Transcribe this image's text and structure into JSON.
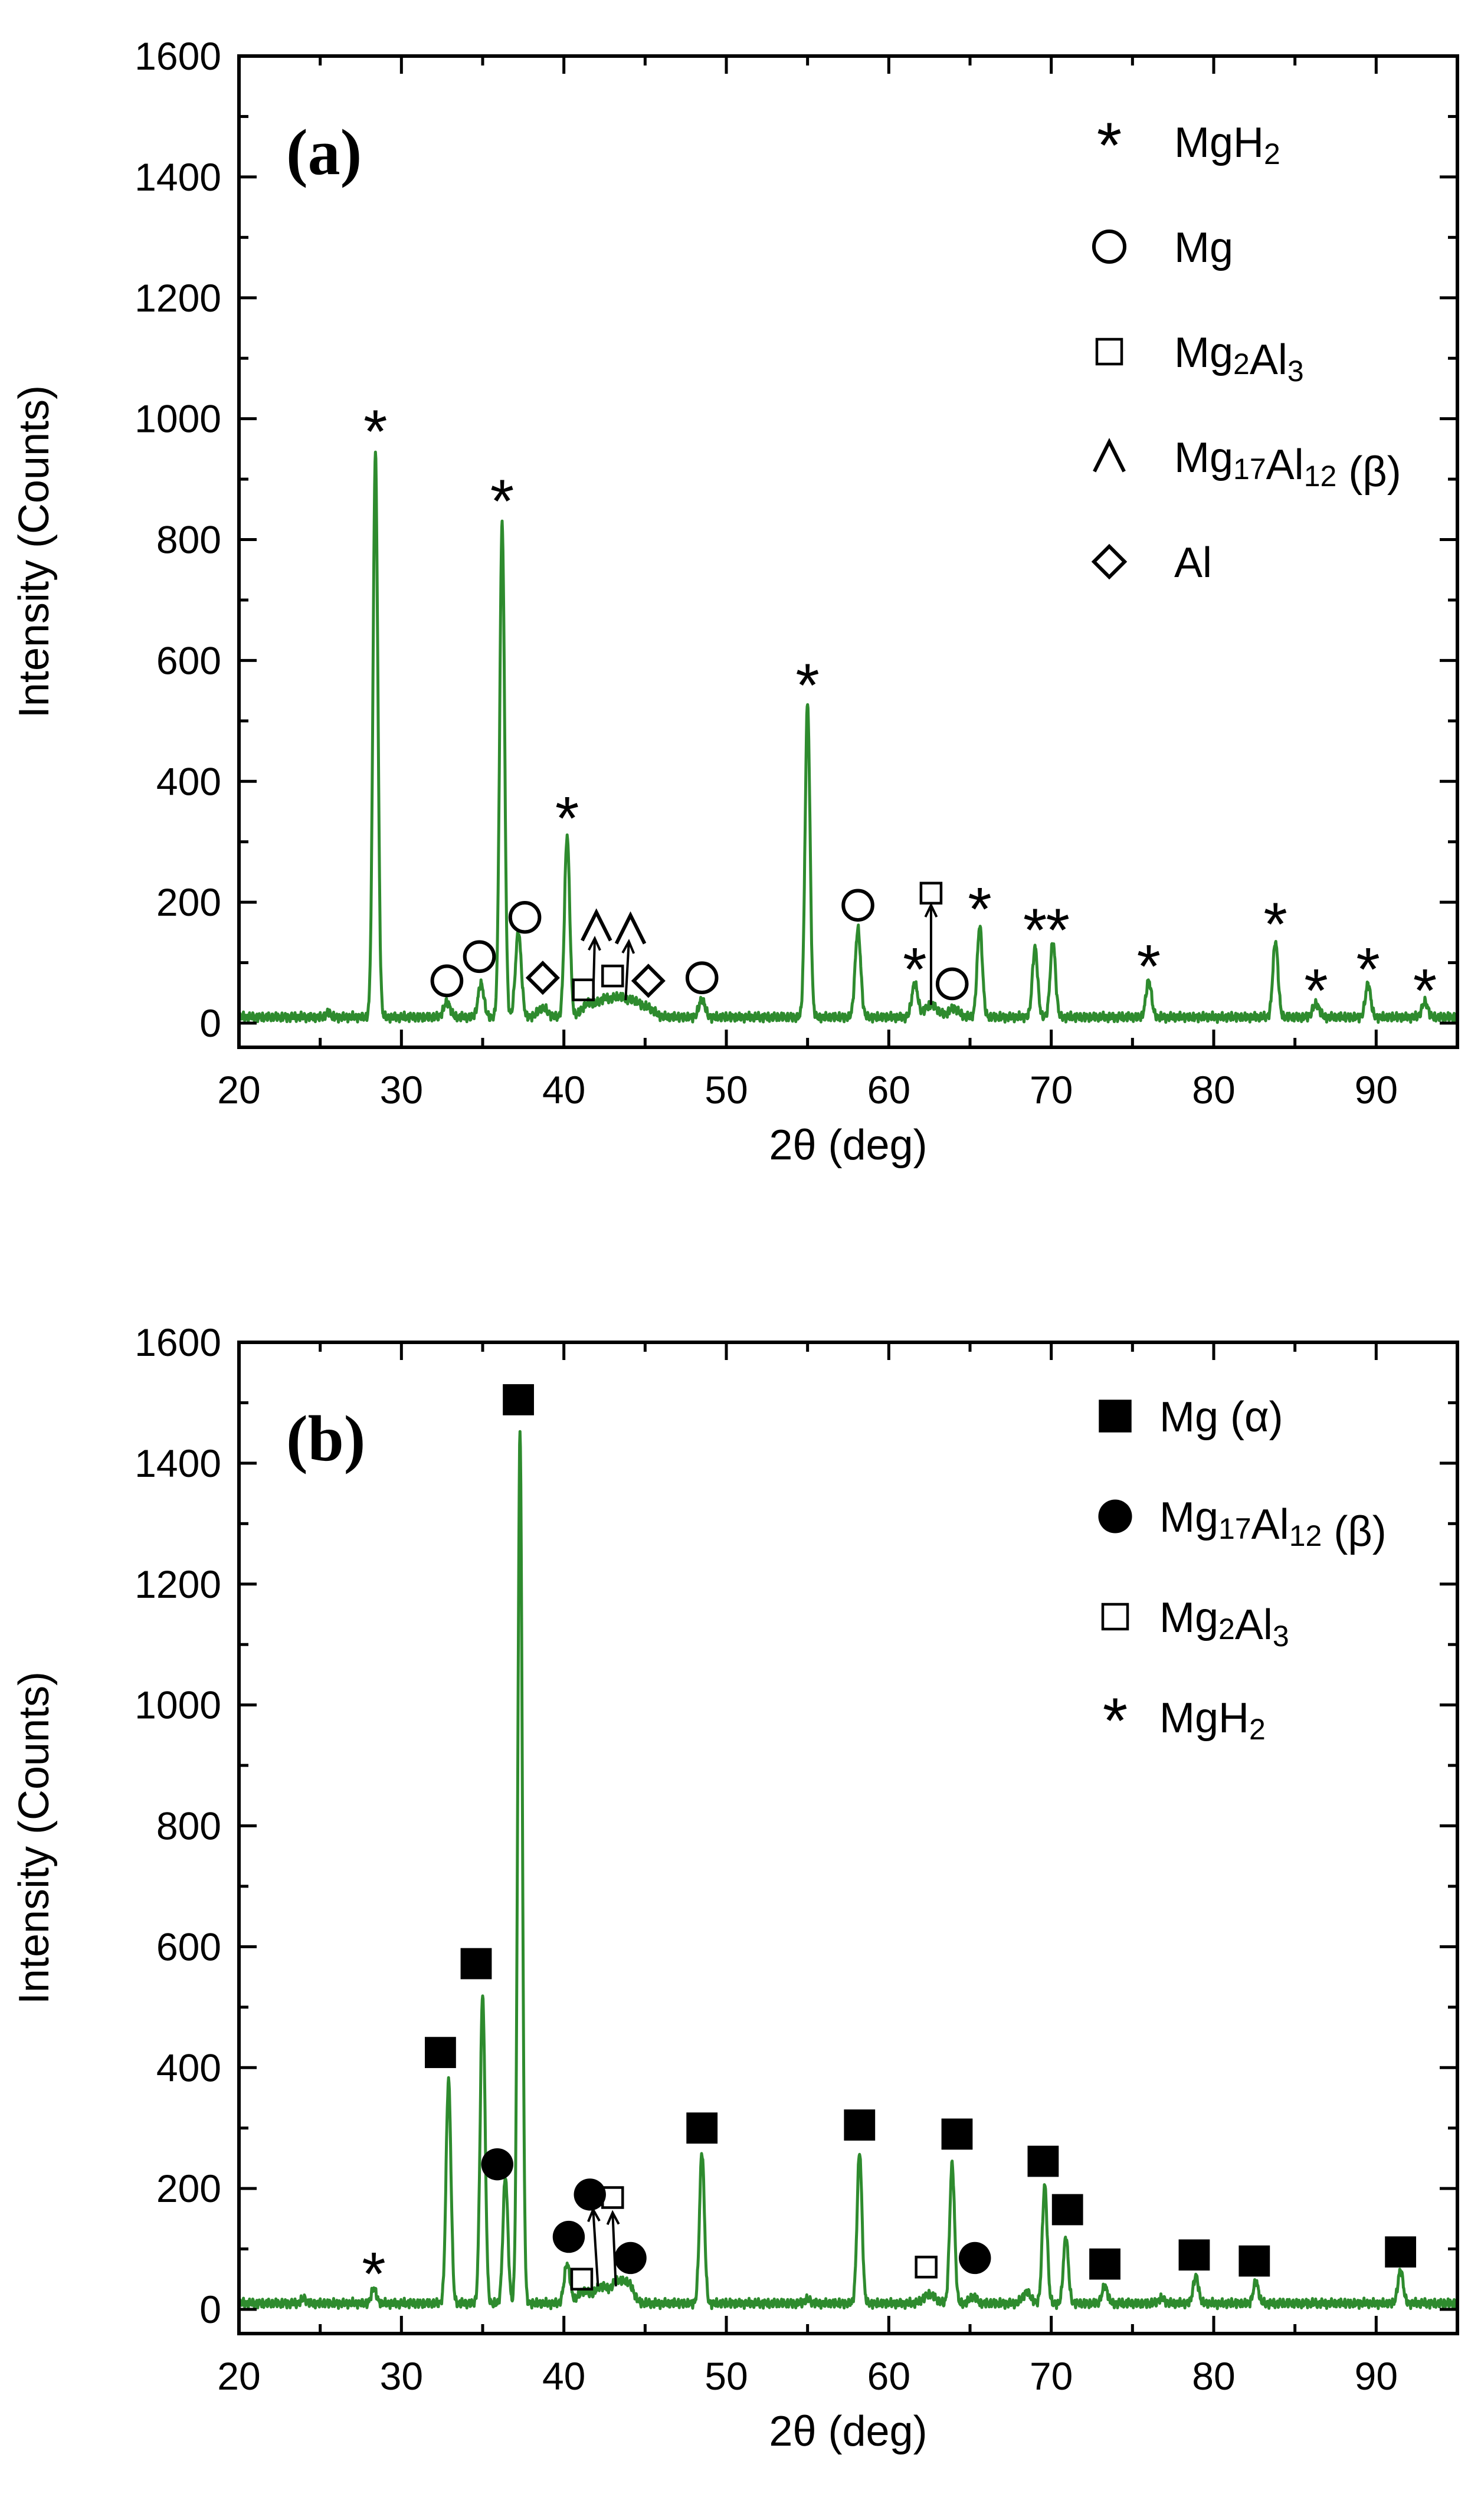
{
  "chart_data": [
    {
      "type": "line",
      "panel_label": "(a)",
      "xlabel": "2θ (deg)",
      "ylabel": "Intensity (Counts)",
      "xlim": [
        20,
        95
      ],
      "ylim": [
        -40,
        1600
      ],
      "xticks": [
        20,
        30,
        40,
        50,
        60,
        70,
        80,
        90
      ],
      "yticks": [
        0,
        200,
        400,
        600,
        800,
        1000,
        1200,
        1400,
        1600
      ],
      "line_color": "#2e8b2e",
      "baseline": 10,
      "peaks": [
        {
          "x": 25.5,
          "y": 8,
          "w": 0.12
        },
        {
          "x": 28.4,
          "y": 930,
          "w": 0.15
        },
        {
          "x": 32.8,
          "y": 25,
          "w": 0.2
        },
        {
          "x": 34.9,
          "y": 55,
          "w": 0.18
        },
        {
          "x": 36.2,
          "y": 820,
          "w": 0.15
        },
        {
          "x": 37.2,
          "y": 140,
          "w": 0.18
        },
        {
          "x": 38.7,
          "y": 15,
          "w": 0.3
        },
        {
          "x": 40.2,
          "y": 300,
          "w": 0.16
        },
        {
          "x": 41.5,
          "y": 22,
          "w": 0.4
        },
        {
          "x": 42.5,
          "y": 28,
          "w": 0.4
        },
        {
          "x": 43.4,
          "y": 30,
          "w": 0.4
        },
        {
          "x": 44.3,
          "y": 25,
          "w": 0.4
        },
        {
          "x": 45.2,
          "y": 14,
          "w": 0.4
        },
        {
          "x": 48.5,
          "y": 30,
          "w": 0.18
        },
        {
          "x": 55.0,
          "y": 520,
          "w": 0.15
        },
        {
          "x": 58.1,
          "y": 145,
          "w": 0.17
        },
        {
          "x": 61.6,
          "y": 55,
          "w": 0.18
        },
        {
          "x": 62.6,
          "y": 20,
          "w": 0.4
        },
        {
          "x": 64.0,
          "y": 15,
          "w": 0.3
        },
        {
          "x": 65.6,
          "y": 150,
          "w": 0.16
        },
        {
          "x": 69.0,
          "y": 115,
          "w": 0.16
        },
        {
          "x": 70.1,
          "y": 125,
          "w": 0.16
        },
        {
          "x": 76.0,
          "y": 60,
          "w": 0.17
        },
        {
          "x": 83.8,
          "y": 125,
          "w": 0.16
        },
        {
          "x": 86.3,
          "y": 22,
          "w": 0.2
        },
        {
          "x": 89.5,
          "y": 55,
          "w": 0.16
        },
        {
          "x": 93.0,
          "y": 25,
          "w": 0.18
        }
      ],
      "legend": [
        {
          "marker": "star",
          "label": "MgH",
          "sub": "2"
        },
        {
          "marker": "circle",
          "label": "Mg"
        },
        {
          "marker": "square",
          "label": "Mg",
          "sub": "2",
          "label2": "Al",
          "sub2": "3"
        },
        {
          "marker": "caret",
          "label": "Mg",
          "sub": "17",
          "label2": "Al",
          "sub2": "12",
          "label3": " (β)"
        },
        {
          "marker": "diamond",
          "label": "Al"
        }
      ],
      "annotations": [
        {
          "marker": "star",
          "x": 28.4,
          "y": 985
        },
        {
          "marker": "star",
          "x": 36.2,
          "y": 870
        },
        {
          "marker": "star",
          "x": 40.2,
          "y": 345
        },
        {
          "marker": "star",
          "x": 55.0,
          "y": 565
        },
        {
          "marker": "star",
          "x": 61.6,
          "y": 95
        },
        {
          "marker": "star",
          "x": 65.6,
          "y": 195
        },
        {
          "marker": "star",
          "x": 69.0,
          "y": 160
        },
        {
          "marker": "star",
          "x": 70.4,
          "y": 160
        },
        {
          "marker": "star",
          "x": 76.0,
          "y": 100
        },
        {
          "marker": "star",
          "x": 83.8,
          "y": 170
        },
        {
          "marker": "star",
          "x": 86.3,
          "y": 60
        },
        {
          "marker": "star",
          "x": 89.5,
          "y": 95
        },
        {
          "marker": "star",
          "x": 93.0,
          "y": 60
        },
        {
          "marker": "circle",
          "x": 32.8,
          "y": 70
        },
        {
          "marker": "circle",
          "x": 34.8,
          "y": 110
        },
        {
          "marker": "circle",
          "x": 37.6,
          "y": 175
        },
        {
          "marker": "circle",
          "x": 48.5,
          "y": 75
        },
        {
          "marker": "circle",
          "x": 58.1,
          "y": 195
        },
        {
          "marker": "circle",
          "x": 63.9,
          "y": 65
        },
        {
          "marker": "diamond",
          "x": 38.7,
          "y": 75
        },
        {
          "marker": "diamond",
          "x": 45.2,
          "y": 70
        },
        {
          "marker": "square",
          "x": 41.2,
          "y": 55
        },
        {
          "marker": "square",
          "x": 43.0,
          "y": 78
        },
        {
          "marker": "square",
          "x": 62.6,
          "y": 215
        },
        {
          "marker": "caret",
          "x": 42.0,
          "y": 160
        },
        {
          "marker": "caret",
          "x": 44.1,
          "y": 155
        }
      ],
      "arrows": [
        {
          "x1": 41.8,
          "y1": 38,
          "x2": 41.9,
          "y2": 140
        },
        {
          "x1": 43.8,
          "y1": 38,
          "x2": 44.0,
          "y2": 135
        },
        {
          "x1": 62.6,
          "y1": 30,
          "x2": 62.6,
          "y2": 195
        }
      ]
    },
    {
      "type": "line",
      "panel_label": "(b)",
      "xlabel": "2θ (deg)",
      "ylabel": "Intensity (Counts)",
      "xlim": [
        20,
        95
      ],
      "ylim": [
        -40,
        1600
      ],
      "xticks": [
        20,
        30,
        40,
        50,
        60,
        70,
        80,
        90
      ],
      "yticks": [
        0,
        200,
        400,
        600,
        800,
        1000,
        1200,
        1400,
        1600
      ],
      "line_color": "#2e8b2e",
      "baseline": 10,
      "peaks": [
        {
          "x": 24.0,
          "y": 8,
          "w": 0.15
        },
        {
          "x": 28.3,
          "y": 25,
          "w": 0.15
        },
        {
          "x": 32.9,
          "y": 370,
          "w": 0.15
        },
        {
          "x": 35.0,
          "y": 510,
          "w": 0.15
        },
        {
          "x": 36.4,
          "y": 210,
          "w": 0.15
        },
        {
          "x": 37.3,
          "y": 1440,
          "w": 0.14
        },
        {
          "x": 40.2,
          "y": 65,
          "w": 0.18
        },
        {
          "x": 41.2,
          "y": 20,
          "w": 0.35
        },
        {
          "x": 42.3,
          "y": 28,
          "w": 0.4
        },
        {
          "x": 43.3,
          "y": 35,
          "w": 0.35
        },
        {
          "x": 44.0,
          "y": 30,
          "w": 0.3
        },
        {
          "x": 48.5,
          "y": 250,
          "w": 0.15
        },
        {
          "x": 55.0,
          "y": 6,
          "w": 0.2
        },
        {
          "x": 58.2,
          "y": 250,
          "w": 0.15
        },
        {
          "x": 62.5,
          "y": 15,
          "w": 0.35
        },
        {
          "x": 63.9,
          "y": 230,
          "w": 0.15
        },
        {
          "x": 65.2,
          "y": 12,
          "w": 0.2
        },
        {
          "x": 68.5,
          "y": 18,
          "w": 0.25
        },
        {
          "x": 69.6,
          "y": 195,
          "w": 0.15
        },
        {
          "x": 70.9,
          "y": 110,
          "w": 0.15
        },
        {
          "x": 73.3,
          "y": 28,
          "w": 0.17
        },
        {
          "x": 76.8,
          "y": 8,
          "w": 0.2
        },
        {
          "x": 78.9,
          "y": 45,
          "w": 0.16
        },
        {
          "x": 82.6,
          "y": 35,
          "w": 0.16
        },
        {
          "x": 91.5,
          "y": 55,
          "w": 0.16
        }
      ],
      "legend": [
        {
          "marker": "filled-square",
          "label": "Mg (α)"
        },
        {
          "marker": "filled-circle",
          "label": "Mg",
          "sub": "17",
          "label2": "Al",
          "sub2": "12",
          "label3": " (β)"
        },
        {
          "marker": "square",
          "label": "Mg",
          "sub": "2",
          "label2": "Al",
          "sub2": "3"
        },
        {
          "marker": "star",
          "label": "MgH",
          "sub": "2"
        }
      ],
      "annotations": [
        {
          "marker": "star",
          "x": 28.3,
          "y": 65
        },
        {
          "marker": "filled-square",
          "x": 32.4,
          "y": 425
        },
        {
          "marker": "filled-square",
          "x": 34.6,
          "y": 572
        },
        {
          "marker": "filled-square",
          "x": 37.2,
          "y": 1505
        },
        {
          "marker": "filled-square",
          "x": 48.5,
          "y": 300
        },
        {
          "marker": "filled-square",
          "x": 58.2,
          "y": 305
        },
        {
          "marker": "filled-square",
          "x": 64.2,
          "y": 290
        },
        {
          "marker": "filled-square",
          "x": 69.5,
          "y": 245
        },
        {
          "marker": "filled-square",
          "x": 71.0,
          "y": 165
        },
        {
          "marker": "filled-square",
          "x": 73.3,
          "y": 75
        },
        {
          "marker": "filled-square",
          "x": 78.8,
          "y": 90
        },
        {
          "marker": "filled-square",
          "x": 82.5,
          "y": 80
        },
        {
          "marker": "filled-square",
          "x": 91.5,
          "y": 95
        },
        {
          "marker": "filled-circle",
          "x": 35.9,
          "y": 240
        },
        {
          "marker": "filled-circle",
          "x": 40.3,
          "y": 120
        },
        {
          "marker": "filled-circle",
          "x": 41.6,
          "y": 190
        },
        {
          "marker": "filled-circle",
          "x": 44.1,
          "y": 85
        },
        {
          "marker": "filled-circle",
          "x": 65.3,
          "y": 85
        },
        {
          "marker": "square",
          "x": 41.1,
          "y": 50
        },
        {
          "marker": "square",
          "x": 43.0,
          "y": 185
        },
        {
          "marker": "square",
          "x": 62.3,
          "y": 70
        }
      ],
      "arrows": [
        {
          "x1": 42.1,
          "y1": 38,
          "x2": 41.8,
          "y2": 165
        },
        {
          "x1": 43.2,
          "y1": 38,
          "x2": 43.0,
          "y2": 160
        }
      ]
    }
  ]
}
